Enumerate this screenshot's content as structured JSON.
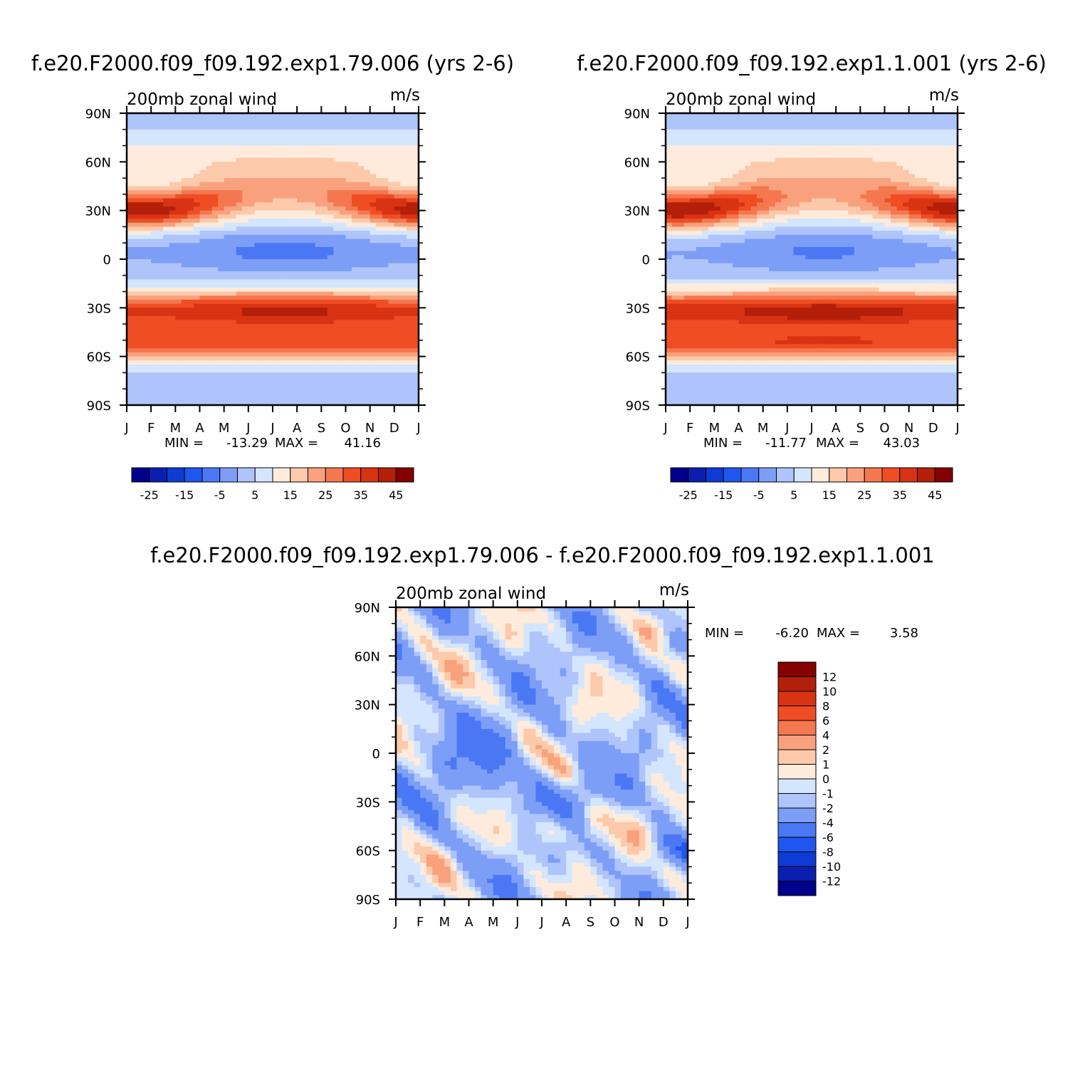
{
  "colors": {
    "abs_levels": [
      "#00008b",
      "#0a1fb0",
      "#0d3bd4",
      "#1f56f0",
      "#4a78f5",
      "#7c9ef7",
      "#aec4fb",
      "#d4e5fe",
      "#feebdc",
      "#fcc9aa",
      "#f9a17c",
      "#f47750",
      "#ef4d23",
      "#d83313",
      "#b41f0a",
      "#850000"
    ],
    "diff_levels": [
      "#00008b",
      "#0a1fb0",
      "#0d3bd4",
      "#1f56f0",
      "#4a78f5",
      "#7c9ef7",
      "#aec4fb",
      "#d4e5fe",
      "#feebdc",
      "#fcc9aa",
      "#f9a17c",
      "#f47750",
      "#ef4d23",
      "#d83313",
      "#b41f0a",
      "#850000"
    ]
  },
  "chart_data": [
    {
      "id": "panel1",
      "type": "heatmap",
      "title": "f.e20.F2000.f09_f09.192.exp1.79.006 (yrs 2-6)",
      "left_label": "200mb zonal wind",
      "right_label": "m/s",
      "xlabel": "",
      "ylabel": "",
      "x_ticks": [
        "J",
        "F",
        "M",
        "A",
        "M",
        "J",
        "J",
        "A",
        "S",
        "O",
        "N",
        "D",
        "J"
      ],
      "y_ticks": [
        "90N",
        "60N",
        "30N",
        "0",
        "30S",
        "60S",
        "90S"
      ],
      "xlim": [
        0,
        12
      ],
      "ylim": [
        -90,
        90
      ],
      "min_label": "MIN =",
      "min_value": "-13.29",
      "max_label": "MAX =",
      "max_value": "41.16",
      "colorbar_labels": [
        "-25",
        "-15",
        "-5",
        "5",
        "15",
        "25",
        "35",
        "45"
      ],
      "jet": {
        "nh_amp": 38,
        "nh_core_lat": 30,
        "sh_amp": 35,
        "eq_min": -12
      }
    },
    {
      "id": "panel2",
      "type": "heatmap",
      "title": "f.e20.F2000.f09_f09.192.exp1.1.001 (yrs 2-6)",
      "left_label": "200mb zonal wind",
      "right_label": "m/s",
      "xlabel": "",
      "ylabel": "",
      "x_ticks": [
        "J",
        "F",
        "M",
        "A",
        "M",
        "J",
        "J",
        "A",
        "S",
        "O",
        "N",
        "D",
        "J"
      ],
      "y_ticks": [
        "90N",
        "60N",
        "30N",
        "0",
        "30S",
        "60S",
        "90S"
      ],
      "xlim": [
        0,
        12
      ],
      "ylim": [
        -90,
        90
      ],
      "min_label": "MIN =",
      "min_value": "-11.77",
      "max_label": "MAX =",
      "max_value": "43.03",
      "colorbar_labels": [
        "-25",
        "-15",
        "-5",
        "5",
        "15",
        "25",
        "35",
        "45"
      ],
      "jet": {
        "nh_amp": 39,
        "nh_core_lat": 30,
        "sh_amp": 37,
        "eq_min": -11
      }
    },
    {
      "id": "panel3",
      "type": "heatmap",
      "title": "f.e20.F2000.f09_f09.192.exp1.79.006 - f.e20.F2000.f09_f09.192.exp1.1.001",
      "left_label": "200mb zonal wind",
      "right_label": "m/s",
      "xlabel": "",
      "ylabel": "",
      "x_ticks": [
        "J",
        "F",
        "M",
        "A",
        "M",
        "J",
        "J",
        "A",
        "S",
        "O",
        "N",
        "D",
        "J"
      ],
      "y_ticks": [
        "90N",
        "60N",
        "30N",
        "0",
        "30S",
        "60S",
        "90S"
      ],
      "xlim": [
        0,
        12
      ],
      "ylim": [
        -90,
        90
      ],
      "min_label": "MIN =",
      "min_value": "-6.20",
      "max_label": "MAX =",
      "max_value": "3.58",
      "colorbar_labels": [
        "12",
        "10",
        "8",
        "6",
        "4",
        "2",
        "1",
        "0",
        "-1",
        "-2",
        "-4",
        "-6",
        "-8",
        "-10",
        "-12"
      ],
      "colorbar_levels": [
        -12,
        -10,
        -8,
        -6,
        -4,
        -2,
        -1,
        0,
        1,
        2,
        4,
        6,
        8,
        10,
        12
      ]
    }
  ]
}
